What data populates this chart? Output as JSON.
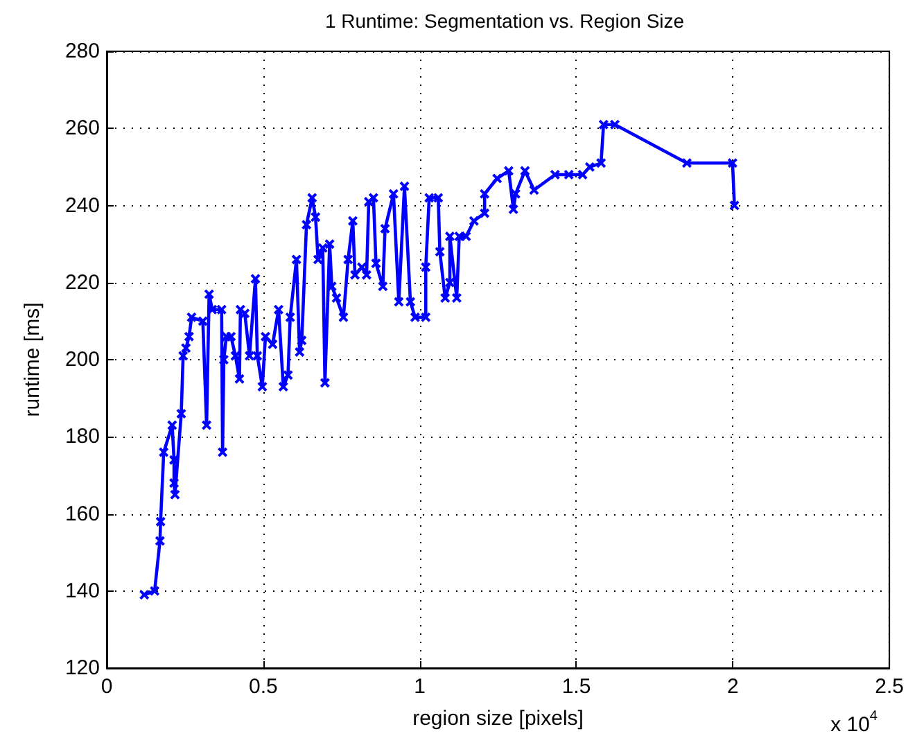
{
  "chart_data": {
    "type": "line",
    "title": "1 Runtime: Segmentation vs. Region Size",
    "xlabel": "region size [pixels]",
    "ylabel": "runtime [ms]",
    "annotations": [
      "x 10$^{4}$"
    ],
    "x": [
      0.12,
      0.153,
      0.17,
      0.172,
      0.182,
      0.209,
      0.215,
      0.215,
      0.218,
      0.238,
      0.244,
      0.253,
      0.263,
      0.271,
      0.307,
      0.319,
      0.327,
      0.337,
      0.367,
      0.37,
      0.374,
      0.382,
      0.397,
      0.411,
      0.424,
      0.427,
      0.441,
      0.456,
      0.475,
      0.481,
      0.497,
      0.507,
      0.53,
      0.549,
      0.564,
      0.579,
      0.586,
      0.606,
      0.616,
      0.623,
      0.638,
      0.656,
      0.667,
      0.675,
      0.69,
      0.697,
      0.712,
      0.719,
      0.734,
      0.756,
      0.771,
      0.786,
      0.793,
      0.815,
      0.83,
      0.837,
      0.852,
      0.86,
      0.882,
      0.889,
      0.916,
      0.933,
      0.951,
      0.97,
      0.985,
      1.019,
      1.019,
      1.03,
      1.059,
      1.064,
      1.081,
      1.096,
      1.096,
      1.118,
      1.126,
      1.148,
      1.173,
      1.207,
      1.207,
      1.247,
      1.284,
      1.299,
      1.306,
      1.336,
      1.365,
      1.432,
      1.476,
      1.52,
      1.543,
      1.579,
      1.587,
      1.623,
      1.853,
      1.999,
      2.005
    ],
    "series": [
      {
        "color": "#0000ff",
        "values": [
          139,
          140,
          153,
          158,
          176,
          183,
          174,
          168,
          165,
          186,
          201,
          203,
          206,
          211,
          210,
          183,
          217,
          213,
          213,
          176,
          200,
          206,
          206,
          201,
          195,
          213,
          212,
          201,
          221,
          201,
          193,
          206,
          204,
          213,
          193,
          196,
          211,
          226,
          202,
          205,
          235,
          242,
          237,
          226,
          229,
          194,
          230,
          219,
          216,
          211,
          226,
          236,
          222,
          224,
          222,
          241,
          242,
          225,
          219,
          234,
          243,
          215,
          245,
          215,
          211,
          211,
          224,
          242,
          242,
          228,
          216,
          220,
          232,
          216,
          232,
          232,
          236,
          238,
          243,
          247,
          249,
          239,
          243,
          249,
          244,
          248,
          248,
          248,
          250,
          251,
          261,
          261,
          251,
          251,
          240
        ]
      }
    ],
    "xlim": [
      0,
      2.5
    ],
    "ylim": [
      120,
      280
    ],
    "xticks": [
      0,
      0.5,
      1,
      1.5,
      2,
      2.5
    ],
    "yticks": [
      120,
      140,
      160,
      180,
      200,
      220,
      240,
      260,
      280
    ],
    "grid": true,
    "marker": "cross",
    "line_style": "solid"
  }
}
